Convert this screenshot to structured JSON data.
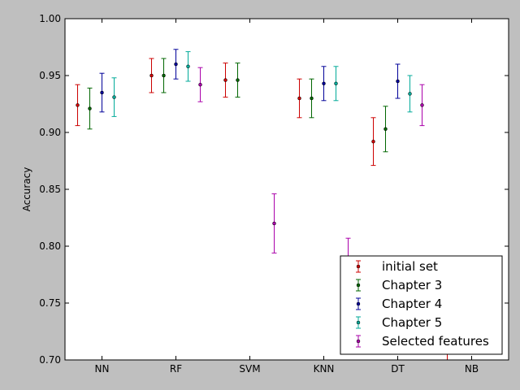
{
  "chart_data": {
    "type": "scatter",
    "subtype": "errorbar",
    "title": "",
    "xlabel": "",
    "ylabel": "Accuracy",
    "categories": [
      "NN",
      "RF",
      "SVM",
      "KNN",
      "DT",
      "NB"
    ],
    "ylim": [
      0.7,
      1.0
    ],
    "yticks": [
      "0.70",
      "0.75",
      "0.80",
      "0.85",
      "0.90",
      "0.95",
      "1.00"
    ],
    "grid": false,
    "legend_position": "bottom-right",
    "series": [
      {
        "name": "initial set",
        "color": "#cc0000",
        "points": [
          {
            "cat": "NN",
            "y": 0.924,
            "err": 0.018
          },
          {
            "cat": "RF",
            "y": 0.95,
            "err": 0.015
          },
          {
            "cat": "SVM",
            "y": 0.946,
            "err": 0.015
          },
          {
            "cat": "KNN",
            "y": 0.93,
            "err": 0.017
          },
          {
            "cat": "DT",
            "y": 0.892,
            "err": 0.021
          },
          {
            "cat": "NB",
            "y": 0.69,
            "err": 0.02
          }
        ]
      },
      {
        "name": "Chapter 3",
        "color": "#006600",
        "points": [
          {
            "cat": "NN",
            "y": 0.921,
            "err": 0.018
          },
          {
            "cat": "RF",
            "y": 0.95,
            "err": 0.015
          },
          {
            "cat": "SVM",
            "y": 0.946,
            "err": 0.015
          },
          {
            "cat": "KNN",
            "y": 0.93,
            "err": 0.017
          },
          {
            "cat": "DT",
            "y": 0.903,
            "err": 0.02
          }
        ]
      },
      {
        "name": "Chapter 4",
        "color": "#000099",
        "points": [
          {
            "cat": "NN",
            "y": 0.935,
            "err": 0.017
          },
          {
            "cat": "RF",
            "y": 0.96,
            "err": 0.013
          },
          {
            "cat": "KNN",
            "y": 0.943,
            "err": 0.015
          },
          {
            "cat": "DT",
            "y": 0.945,
            "err": 0.015
          }
        ]
      },
      {
        "name": "Chapter 5",
        "color": "#00aa99",
        "points": [
          {
            "cat": "NN",
            "y": 0.931,
            "err": 0.017
          },
          {
            "cat": "RF",
            "y": 0.958,
            "err": 0.013
          },
          {
            "cat": "KNN",
            "y": 0.943,
            "err": 0.015
          },
          {
            "cat": "DT",
            "y": 0.934,
            "err": 0.016
          }
        ]
      },
      {
        "name": "Selected features",
        "color": "#aa00aa",
        "points": [
          {
            "cat": "RF",
            "y": 0.942,
            "err": 0.015
          },
          {
            "cat": "SVM",
            "y": 0.82,
            "err": 0.026
          },
          {
            "cat": "KNN",
            "y": 0.778,
            "err": 0.029
          },
          {
            "cat": "DT",
            "y": 0.924,
            "err": 0.018
          }
        ]
      }
    ]
  }
}
